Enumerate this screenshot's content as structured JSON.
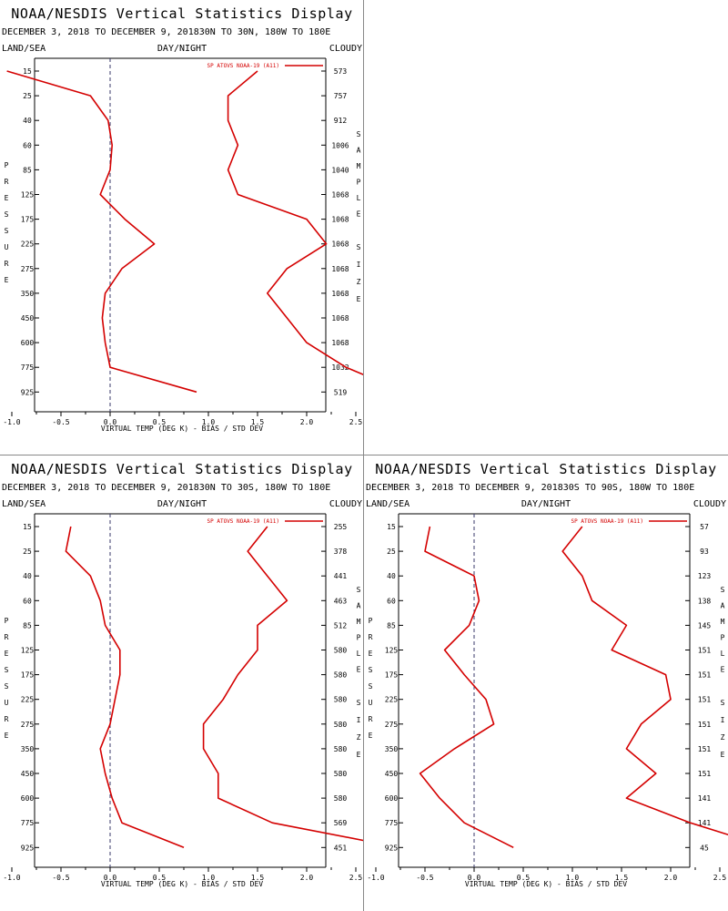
{
  "labels": {
    "title": "NOAA/NESDIS Vertical Statistics Display",
    "left_header": "LAND/SEA",
    "center_header": "DAY/NIGHT",
    "right_header": "CLOUDY",
    "xlabel": "VIRTUAL TEMP (DEG K) - BIAS / STD DEV",
    "legend": "SP ATOVS NOAA-19 (A11)",
    "ylabel_vertical": "PRESSURE",
    "right_vertical_1": "SAMPLE",
    "right_vertical_2": "SIZE"
  },
  "colors": {
    "series": "#d40000",
    "axis": "#000000",
    "zero_line": "#3a3a6a"
  },
  "chart_data": [
    {
      "type": "line",
      "title": "NOAA/NESDIS Vertical Statistics Display",
      "subtitle": "DECEMBER 3, 2018 TO DECEMBER 9, 201830N TO 30N, 180W TO 180E",
      "xlabel": "VIRTUAL TEMP (DEG K) - BIAS / STD DEV",
      "ylabel": "PRESSURE",
      "xlim": [
        -1.5,
        4.0
      ],
      "x_ticks": [
        "-1.0",
        "-0.5",
        "0.0",
        "0.5",
        "1.0",
        "1.5",
        "2.0",
        "2.5",
        "3.0",
        "3.5",
        "4.0"
      ],
      "pressure_levels": [
        "15",
        "25",
        "40",
        "60",
        "85",
        "125",
        "175",
        "225",
        "275",
        "350",
        "450",
        "600",
        "775",
        "925"
      ],
      "sample_size": [
        "573",
        "757",
        "912",
        "1006",
        "1040",
        "1068",
        "1068",
        "1068",
        "1068",
        "1068",
        "1068",
        "1068",
        "1032",
        "519"
      ],
      "series": [
        {
          "name": "bias",
          "values": [
            -1.05,
            -0.2,
            -0.02,
            0.02,
            0.0,
            -0.1,
            0.15,
            0.45,
            0.12,
            -0.05,
            -0.08,
            -0.05,
            0.0,
            0.88
          ]
        },
        {
          "name": "std_dev",
          "values": [
            1.5,
            1.2,
            1.2,
            1.3,
            1.2,
            1.3,
            2.0,
            2.2,
            1.8,
            1.6,
            1.8,
            2.0,
            2.4,
            3.0
          ]
        }
      ],
      "legend": "SP ATOVS NOAA-19 (A11)"
    },
    {
      "type": "line",
      "title": "NOAA/NESDIS Vertical Statistics Display",
      "subtitle": "DECEMBER 3, 2018 TO DECEMBER 9, 201830N TO 30S, 180W TO 180E",
      "xlabel": "VIRTUAL TEMP (DEG K) - BIAS / STD DEV",
      "ylabel": "PRESSURE",
      "xlim": [
        -1.5,
        4.0
      ],
      "x_ticks": [
        "-1.0",
        "-0.5",
        "0.0",
        "0.5",
        "1.0",
        "1.5",
        "2.0",
        "2.5",
        "3.0",
        "3.5",
        "4.0"
      ],
      "pressure_levels": [
        "15",
        "25",
        "40",
        "60",
        "85",
        "125",
        "175",
        "225",
        "275",
        "350",
        "450",
        "600",
        "775",
        "925"
      ],
      "sample_size": [
        "255",
        "378",
        "441",
        "463",
        "512",
        "580",
        "580",
        "580",
        "580",
        "580",
        "580",
        "580",
        "569",
        "451"
      ],
      "series": [
        {
          "name": "bias",
          "values": [
            -0.4,
            -0.45,
            -0.2,
            -0.1,
            -0.05,
            0.1,
            0.1,
            0.05,
            0.0,
            -0.1,
            -0.05,
            0.02,
            0.12,
            0.75
          ]
        },
        {
          "name": "std_dev",
          "values": [
            1.6,
            1.4,
            1.6,
            1.8,
            1.5,
            1.5,
            1.3,
            1.15,
            0.95,
            0.95,
            1.1,
            1.1,
            1.65,
            2.95
          ]
        }
      ],
      "legend": "SP ATOVS NOAA-19 (A11)"
    },
    {
      "type": "line",
      "title": "NOAA/NESDIS Vertical Statistics Display",
      "subtitle": "DECEMBER 3, 2018 TO DECEMBER 9, 201830S TO 90S, 180W TO 180E",
      "xlabel": "VIRTUAL TEMP (DEG K) - BIAS / STD DEV",
      "ylabel": "PRESSURE",
      "xlim": [
        -1.5,
        4.0
      ],
      "x_ticks": [
        "-1.0",
        "-0.5",
        "0.0",
        "0.5",
        "1.0",
        "1.5",
        "2.0",
        "2.5",
        "3.0",
        "3.5",
        "4.0"
      ],
      "pressure_levels": [
        "15",
        "25",
        "40",
        "60",
        "85",
        "125",
        "175",
        "225",
        "275",
        "350",
        "450",
        "600",
        "775",
        "925"
      ],
      "sample_size": [
        "57",
        "93",
        "123",
        "138",
        "145",
        "151",
        "151",
        "151",
        "151",
        "151",
        "151",
        "141",
        "141",
        "45"
      ],
      "series": [
        {
          "name": "bias",
          "values": [
            -0.45,
            -0.5,
            0.0,
            0.05,
            -0.05,
            -0.3,
            -0.1,
            0.12,
            0.2,
            -0.2,
            -0.55,
            -0.35,
            -0.1,
            0.4
          ]
        },
        {
          "name": "std_dev",
          "values": [
            1.1,
            0.9,
            1.1,
            1.2,
            1.55,
            1.4,
            1.95,
            2.0,
            1.7,
            1.55,
            1.85,
            1.55,
            2.2,
            3.0
          ]
        }
      ],
      "legend": "SP ATOVS NOAA-19 (A11)"
    }
  ]
}
